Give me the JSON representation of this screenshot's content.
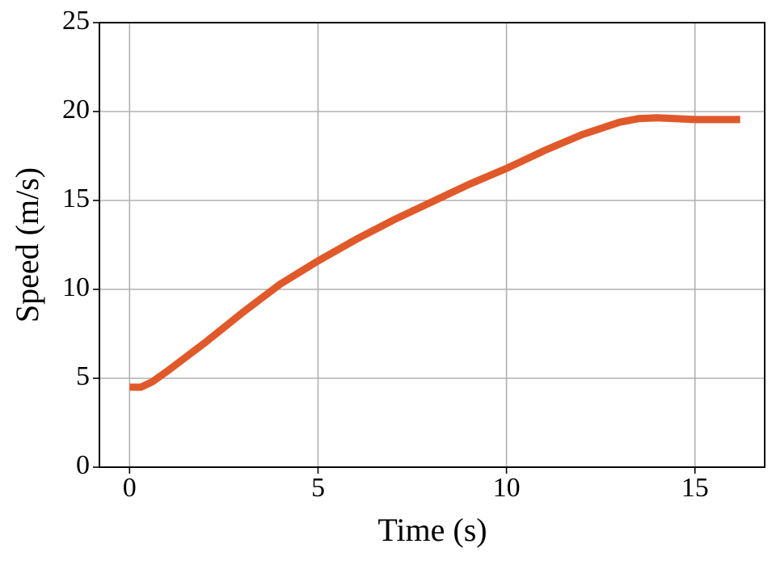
{
  "chart_data": {
    "type": "line",
    "x_label": "Time (s)",
    "y_label": "Speed (m/s)",
    "x": [
      0,
      0.3,
      0.6,
      1,
      2,
      3,
      4,
      5,
      6,
      7,
      8,
      9,
      10,
      11,
      12,
      13,
      13.5,
      14,
      15,
      16.2
    ],
    "series": [
      {
        "name": "Speed",
        "color": "#e0592a",
        "values": [
          4.5,
          4.5,
          4.8,
          5.4,
          7.0,
          8.7,
          10.3,
          11.6,
          12.8,
          13.9,
          14.9,
          15.9,
          16.8,
          17.8,
          18.7,
          19.4,
          19.6,
          19.65,
          19.55,
          19.55
        ]
      }
    ],
    "xlim": [
      -0.8,
      16.85
    ],
    "xticks": [
      0,
      5,
      10,
      15
    ],
    "ylim": [
      0,
      25
    ],
    "yticks": [
      0,
      5,
      10,
      15,
      20,
      25
    ],
    "grid": true
  }
}
